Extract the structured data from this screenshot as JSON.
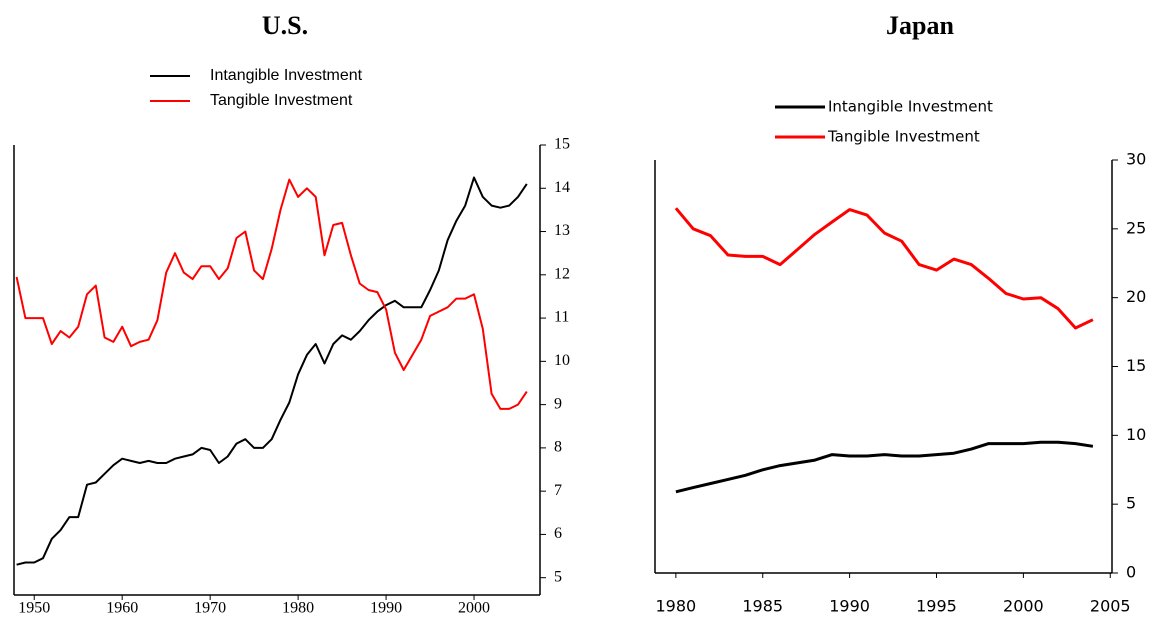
{
  "chart_data": [
    {
      "type": "line",
      "title": "U.S.",
      "x": [
        1948,
        1949,
        1950,
        1951,
        1952,
        1953,
        1954,
        1955,
        1956,
        1957,
        1958,
        1959,
        1960,
        1961,
        1962,
        1963,
        1964,
        1965,
        1966,
        1967,
        1968,
        1969,
        1970,
        1971,
        1972,
        1973,
        1974,
        1975,
        1976,
        1977,
        1978,
        1979,
        1980,
        1981,
        1982,
        1983,
        1984,
        1985,
        1986,
        1987,
        1988,
        1989,
        1990,
        1991,
        1992,
        1993,
        1994,
        1995,
        1996,
        1997,
        1998,
        1999,
        2000,
        2001,
        2002,
        2003,
        2004,
        2005,
        2006
      ],
      "series": [
        {
          "name": "Intangible Investment",
          "color": "#000000",
          "values": [
            5.3,
            5.35,
            5.35,
            5.45,
            5.9,
            6.1,
            6.4,
            6.4,
            7.15,
            7.2,
            7.4,
            7.6,
            7.75,
            7.7,
            7.65,
            7.7,
            7.65,
            7.65,
            7.75,
            7.8,
            7.85,
            8.0,
            7.95,
            7.65,
            7.8,
            8.1,
            8.2,
            8.0,
            8.0,
            8.2,
            8.65,
            9.05,
            9.7,
            10.15,
            10.4,
            9.95,
            10.4,
            10.6,
            10.5,
            10.7,
            10.95,
            11.15,
            11.3,
            11.4,
            11.25,
            11.25,
            11.25,
            11.65,
            12.1,
            12.8,
            13.25,
            13.6,
            14.25,
            13.8,
            13.6,
            13.55,
            13.6,
            13.8,
            14.1
          ]
        },
        {
          "name": "Tangible Investment",
          "color": "#ff0000",
          "values": [
            11.95,
            11.0,
            11.0,
            11.0,
            10.4,
            10.7,
            10.55,
            10.8,
            11.55,
            11.75,
            10.55,
            10.45,
            10.8,
            10.35,
            10.45,
            10.5,
            10.95,
            12.05,
            12.5,
            12.05,
            11.9,
            12.2,
            12.2,
            11.9,
            12.15,
            12.85,
            13.0,
            12.1,
            11.9,
            12.6,
            13.5,
            14.2,
            13.8,
            14.0,
            13.8,
            12.45,
            13.15,
            13.2,
            12.45,
            11.8,
            11.65,
            11.6,
            11.2,
            10.2,
            9.8,
            10.15,
            10.5,
            11.05,
            11.15,
            11.25,
            11.45,
            11.45,
            11.55,
            10.75,
            9.25,
            8.9,
            8.9,
            9.0,
            9.3
          ]
        }
      ],
      "xlim": [
        1947.7,
        2007.5
      ],
      "xticks": [
        1950,
        1960,
        1970,
        1980,
        1990,
        2000
      ],
      "ylim": [
        4.6,
        15
      ],
      "yticks": [
        5,
        6,
        7,
        8,
        9,
        10,
        11,
        12,
        13,
        14,
        15
      ]
    },
    {
      "type": "line",
      "title": "Japan",
      "x": [
        1980,
        1981,
        1982,
        1983,
        1984,
        1985,
        1986,
        1987,
        1988,
        1989,
        1990,
        1991,
        1992,
        1993,
        1994,
        1995,
        1996,
        1997,
        1998,
        1999,
        2000,
        2001,
        2002,
        2003,
        2004
      ],
      "series": [
        {
          "name": "Intangible Investment",
          "color": "#000000",
          "values": [
            5.9,
            6.2,
            6.5,
            6.8,
            7.1,
            7.5,
            7.8,
            8.0,
            8.2,
            8.6,
            8.5,
            8.5,
            8.6,
            8.5,
            8.5,
            8.6,
            8.7,
            9.0,
            9.4,
            9.4,
            9.4,
            9.5,
            9.5,
            9.4,
            9.2
          ]
        },
        {
          "name": "Tangible Investment",
          "color": "#ff0000",
          "values": [
            26.5,
            25.0,
            24.5,
            23.1,
            23.0,
            23.0,
            22.4,
            23.5,
            24.6,
            25.5,
            26.4,
            26.0,
            24.7,
            24.1,
            22.4,
            22.0,
            22.8,
            22.4,
            21.4,
            20.3,
            19.9,
            20.0,
            19.2,
            17.8,
            18.4
          ]
        }
      ],
      "xlim": [
        1978.8,
        2005.1
      ],
      "xticks": [
        1980,
        1985,
        1990,
        1995,
        2000,
        2005
      ],
      "ylim": [
        0,
        30
      ],
      "yticks": [
        0,
        5,
        10,
        15,
        20,
        25,
        30
      ]
    }
  ]
}
